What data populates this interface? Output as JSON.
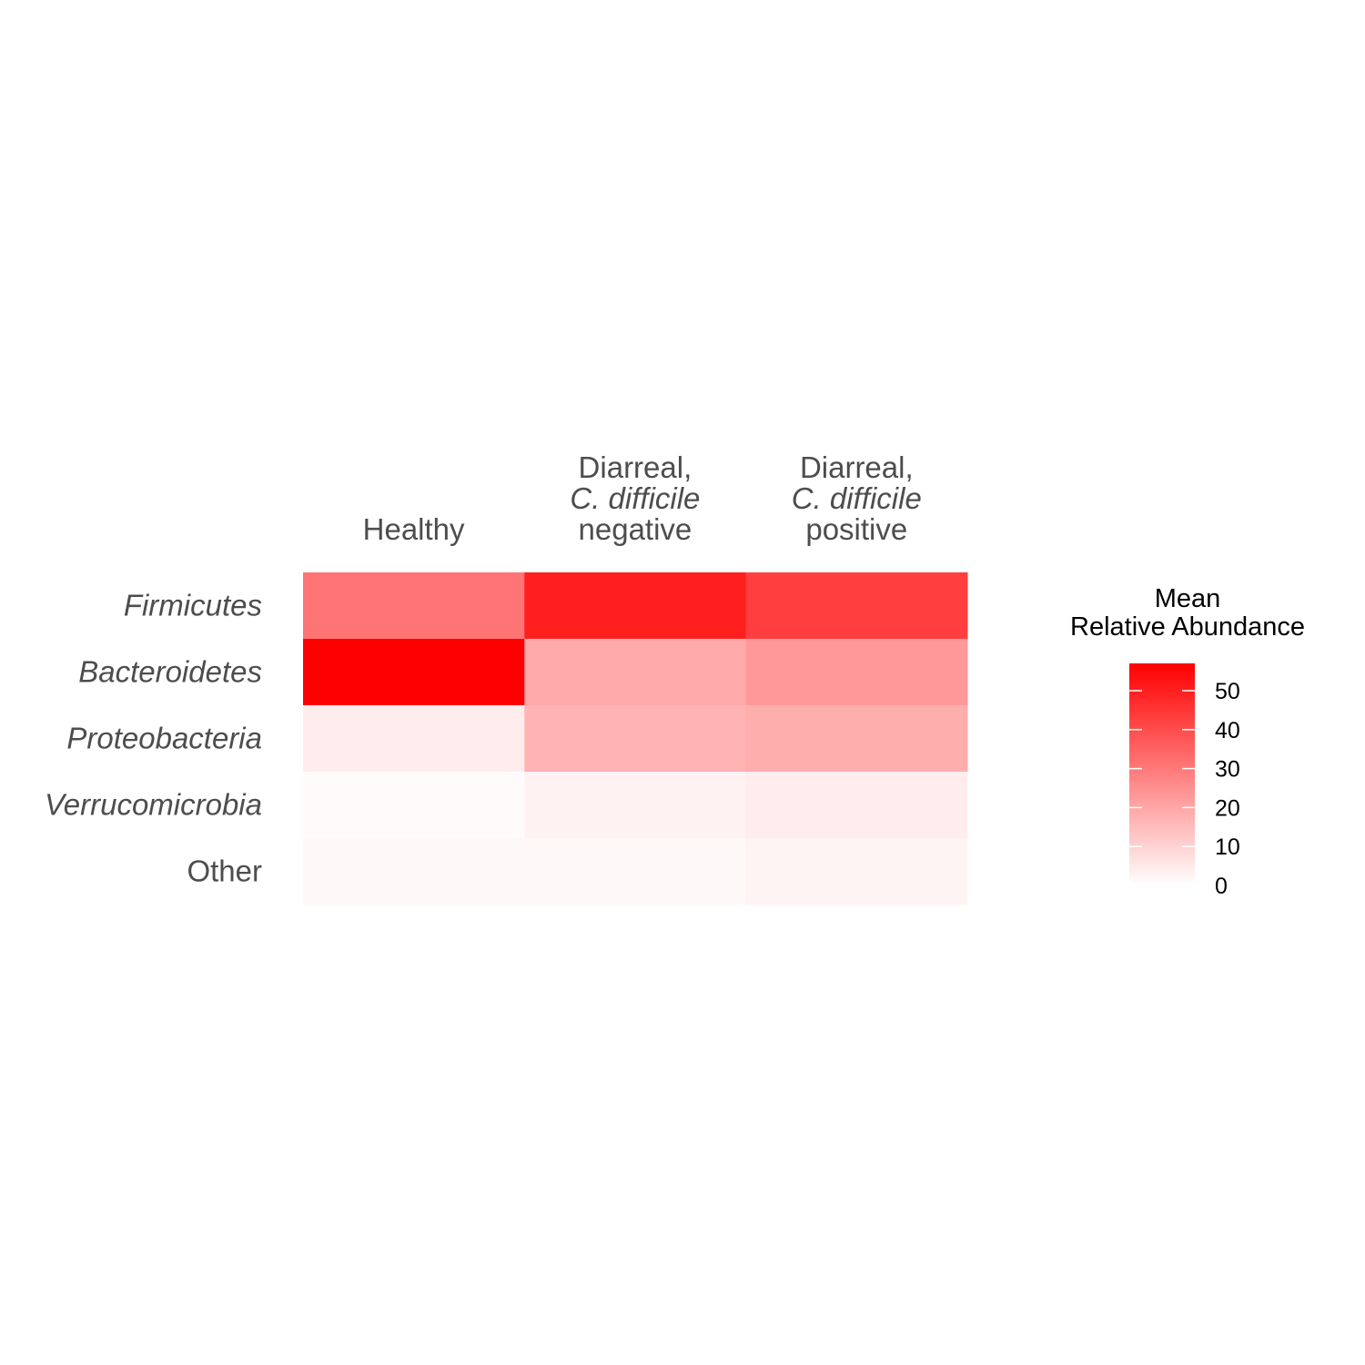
{
  "chart_data": {
    "type": "heatmap",
    "columns": [
      {
        "lines": [
          {
            "text": "Healthy",
            "italic": false
          }
        ]
      },
      {
        "lines": [
          {
            "text": "Diarreal,",
            "italic": false
          },
          {
            "text": "C. difficile",
            "italic": true
          },
          {
            "text": "negative",
            "italic": false
          }
        ]
      },
      {
        "lines": [
          {
            "text": "Diarreal,",
            "italic": false
          },
          {
            "text": "C. difficile",
            "italic": true
          },
          {
            "text": "positive",
            "italic": false
          }
        ]
      }
    ],
    "rows": [
      {
        "label": "Firmicutes",
        "italic": true
      },
      {
        "label": "Bacteroidetes",
        "italic": true
      },
      {
        "label": "Proteobacteria",
        "italic": true
      },
      {
        "label": "Verrucomicrobia",
        "italic": true
      },
      {
        "label": "Other",
        "italic": false
      }
    ],
    "values": [
      [
        31,
        50,
        43
      ],
      [
        57,
        19,
        23
      ],
      [
        4,
        17,
        18
      ],
      [
        1,
        3,
        4
      ],
      [
        1.5,
        1.5,
        2.5
      ]
    ],
    "color_scale": {
      "low": "#ffffff",
      "high": "#ff0000",
      "min": 0,
      "max": 57
    },
    "legend": {
      "title_lines": [
        "Mean",
        "Relative Abundance"
      ],
      "ticks": [
        0,
        10,
        20,
        30,
        40,
        50
      ],
      "tick_labels": [
        "0",
        "10",
        "20",
        "30",
        "40",
        "50"
      ],
      "placement": "right"
    }
  }
}
